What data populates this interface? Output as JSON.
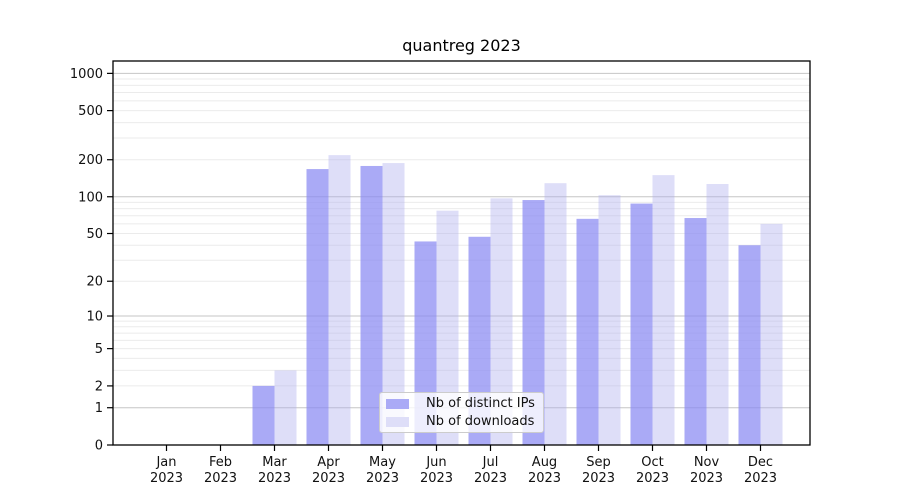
{
  "title": "quantreg 2023",
  "chart_data": {
    "type": "bar",
    "title": "quantreg 2023",
    "categories": [
      "Jan",
      "Feb",
      "Mar",
      "Apr",
      "May",
      "Jun",
      "Jul",
      "Aug",
      "Sep",
      "Oct",
      "Nov",
      "Dec"
    ],
    "category_year": "2023",
    "series": [
      {
        "name": "Nb of distinct IPs",
        "values": [
          0,
          0,
          2,
          168,
          178,
          43,
          47,
          94,
          66,
          88,
          67,
          40
        ],
        "color": "rgba(137,137,243,0.72)",
        "legend_color": "#aaaaf6"
      },
      {
        "name": "Nb of downloads",
        "values": [
          0,
          0,
          3,
          218,
          188,
          77,
          97,
          129,
          103,
          150,
          127,
          60
        ],
        "color": "rgba(173,173,237,0.40)",
        "legend_color": "#dedef8"
      }
    ],
    "xlabel": "",
    "ylabel": "",
    "yscale": "log1p",
    "y_ticks": [
      0,
      1,
      2,
      5,
      10,
      20,
      50,
      100,
      200,
      500,
      1000
    ],
    "ylim": [
      0,
      1259
    ],
    "grid": "horizontal",
    "legend_position": "lower-center"
  },
  "styles": {
    "spine_color": "#000000",
    "major_grid_color": "#c6c6c6",
    "minor_grid_color": "#ebebeb",
    "tick_text_color": "#111111",
    "legend_border_color": "#cccccc"
  }
}
